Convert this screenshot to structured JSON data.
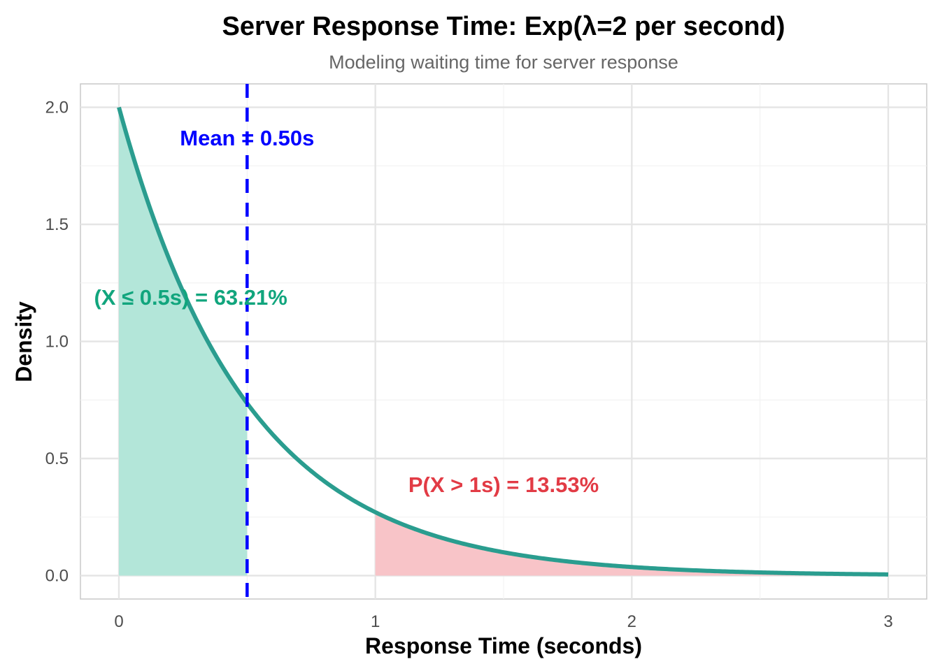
{
  "chart_data": {
    "type": "area",
    "title": "Server Response Time: Exp(λ=2 per second)",
    "subtitle": "Modeling waiting time for server response",
    "xlabel": "Response Time (seconds)",
    "ylabel": "Density",
    "xlim": [
      -0.15,
      3.15
    ],
    "ylim": [
      -0.1,
      2.1
    ],
    "x_ticks": [
      0,
      1,
      2,
      3
    ],
    "x_tick_labels": [
      "0",
      "1",
      "2",
      "3"
    ],
    "y_ticks": [
      0.0,
      0.5,
      1.0,
      1.5,
      2.0
    ],
    "y_tick_labels": [
      "0.0",
      "0.5",
      "1.0",
      "1.5",
      "2.0"
    ],
    "grid": true,
    "series": [
      {
        "function": "lambda * exp(-lambda * x)",
        "lambda": 2,
        "x_range": [
          0,
          3
        ],
        "color": "#2a9d8f"
      }
    ],
    "shaded_regions": [
      {
        "x_from": 0,
        "x_to": 0.5,
        "color": "#b3e6d9"
      },
      {
        "x_from": 1,
        "x_to": 3,
        "color": "#f8c4c8"
      }
    ],
    "reference_lines": [
      {
        "x": 0.5,
        "style": "dashed",
        "color": "#0000ff"
      }
    ],
    "annotations": [
      {
        "text": "Mean = 0.50s",
        "x": 0.5,
        "y": 1.87,
        "color": "#0000ff"
      },
      {
        "text": "(X ≤ 0.5s) = 63.21%",
        "x": 0.28,
        "y": 1.19,
        "color": "#11a57d"
      },
      {
        "text": "P(X > 1s) = 13.53%",
        "x": 1.5,
        "y": 0.39,
        "color": "#e23b45"
      }
    ]
  }
}
